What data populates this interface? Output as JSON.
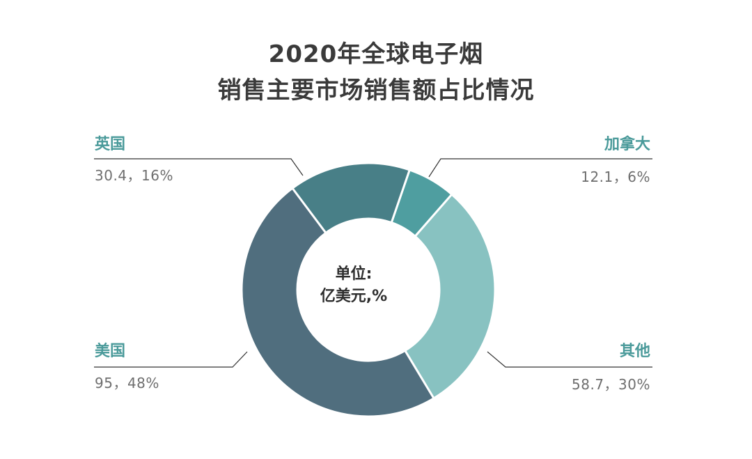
{
  "chart_data": {
    "type": "pie",
    "title": "2020年全球电子烟",
    "subtitle": "销售主要市场销售额占比情况",
    "center_label_line1": "单位:",
    "center_label_line2": "亿美元,%",
    "slices": [
      {
        "name": "加拿大",
        "value": 12.1,
        "percent": 6,
        "label": "12.1，6%",
        "color": "#4f9ea0"
      },
      {
        "name": "其他",
        "value": 58.7,
        "percent": 30,
        "label": "58.7，30%",
        "color": "#88c2c1"
      },
      {
        "name": "美国",
        "value": 95,
        "percent": 48,
        "label": "95，48%",
        "color": "#506e7e"
      },
      {
        "name": "英国",
        "value": 30.4,
        "percent": 16,
        "label": "30.4，16%",
        "color": "#487f87"
      }
    ],
    "category_label_color": "#4a9a9a",
    "value_label_color": "#6e6e6e",
    "leader_line_color": "#333333"
  }
}
